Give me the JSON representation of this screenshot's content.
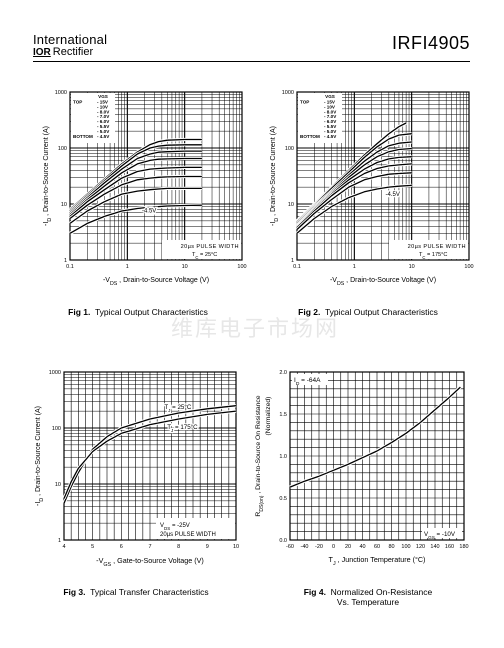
{
  "header": {
    "company_line1": "International",
    "company_logo_mark": "IOR",
    "company_line2": "Rectifier",
    "part_number": "IRFI4905"
  },
  "watermark": "维库电子市场网",
  "chart_data": [
    {
      "id": "fig1",
      "type": "line",
      "caption_num": "Fig 1.",
      "caption": "Typical Output Characteristics",
      "xlabel": "-VDS , Drain-to-Source Voltage (V)",
      "ylabel": "-ID , Drain-to-Source Current (A)",
      "xscale": "log",
      "yscale": "log",
      "xlim": [
        0.1,
        100
      ],
      "ylim": [
        1,
        1000
      ],
      "xticks": [
        "0.1",
        "1",
        "10",
        "100"
      ],
      "yticks": [
        "1",
        "10",
        "100",
        "1000"
      ],
      "legend_header": "VGS",
      "legend_rows": [
        {
          "label": "TOP",
          "value": "- 15V"
        },
        {
          "label": "",
          "value": "- 10V"
        },
        {
          "label": "",
          "value": "- 8.0V"
        },
        {
          "label": "",
          "value": "- 7.0V"
        },
        {
          "label": "",
          "value": "- 6.0V"
        },
        {
          "label": "",
          "value": "- 5.5V"
        },
        {
          "label": "",
          "value": "- 5.0V"
        },
        {
          "label": "BOTTOM",
          "value": "- 4.5V"
        }
      ],
      "curve_label": "-4.5V",
      "curve_label_at": [
        1.8,
        7
      ],
      "note_lines": [
        "20µs PULSE WIDTH",
        "TC = 25°C"
      ],
      "series": [
        {
          "vgs": "-15V",
          "x": [
            0.1,
            0.2,
            0.4,
            0.8,
            1.5,
            2.5,
            3.5,
            5,
            10,
            20
          ],
          "y": [
            8,
            15,
            28,
            52,
            85,
            115,
            130,
            138,
            142,
            142
          ]
        },
        {
          "vgs": "-10V",
          "x": [
            0.1,
            0.2,
            0.4,
            0.8,
            1.5,
            2.5,
            3.5,
            5,
            10,
            20
          ],
          "y": [
            7.5,
            14,
            26,
            48,
            78,
            100,
            108,
            112,
            114,
            114
          ]
        },
        {
          "vgs": "-8.0V",
          "x": [
            0.1,
            0.2,
            0.4,
            0.8,
            1.5,
            2.5,
            3.5,
            5,
            10,
            20
          ],
          "y": [
            7,
            13,
            24,
            42,
            65,
            78,
            84,
            86,
            88,
            88
          ]
        },
        {
          "vgs": "-7.0V",
          "x": [
            0.1,
            0.2,
            0.4,
            0.8,
            1.5,
            2.5,
            3.5,
            5,
            10,
            20
          ],
          "y": [
            6.5,
            12,
            21,
            36,
            52,
            60,
            63,
            64,
            65,
            65
          ]
        },
        {
          "vgs": "-6.0V",
          "x": [
            0.1,
            0.2,
            0.4,
            0.8,
            1.5,
            2.5,
            3.5,
            5,
            10,
            20
          ],
          "y": [
            6,
            11,
            18,
            29,
            38,
            42,
            43,
            44,
            45,
            45
          ]
        },
        {
          "vgs": "-5.5V",
          "x": [
            0.1,
            0.2,
            0.4,
            0.8,
            1.5,
            2.5,
            3.5,
            5,
            10,
            20
          ],
          "y": [
            5.5,
            9.5,
            15,
            22,
            27,
            29,
            30,
            30.5,
            31,
            31
          ]
        },
        {
          "vgs": "-5.0V",
          "x": [
            0.1,
            0.2,
            0.4,
            0.8,
            1.5,
            2.5,
            3.5,
            5,
            10,
            20
          ],
          "y": [
            4.5,
            7.5,
            11,
            15,
            17,
            18,
            18.5,
            19,
            19,
            19
          ]
        },
        {
          "vgs": "-4.5V",
          "x": [
            0.1,
            0.2,
            0.4,
            0.8,
            1.5,
            2.5,
            3.5,
            5,
            10,
            20
          ],
          "y": [
            3,
            4.5,
            6,
            7.5,
            8.3,
            8.8,
            9,
            9.2,
            9.4,
            9.5
          ]
        }
      ]
    },
    {
      "id": "fig2",
      "type": "line",
      "caption_num": "Fig 2.",
      "caption": "Typical Output Characteristics",
      "xlabel": "-VDS , Drain-to-Source Voltage (V)",
      "ylabel": "-ID , Drain-to-Source Current (A)",
      "xscale": "log",
      "yscale": "log",
      "xlim": [
        0.1,
        100
      ],
      "ylim": [
        1,
        1000
      ],
      "xticks": [
        "0.1",
        "1",
        "10",
        "100"
      ],
      "yticks": [
        "1",
        "10",
        "100",
        "1000"
      ],
      "legend_header": "VGS",
      "legend_rows": [
        {
          "label": "TOP",
          "value": "- 15V"
        },
        {
          "label": "",
          "value": "- 10V"
        },
        {
          "label": "",
          "value": "- 8.0V"
        },
        {
          "label": "",
          "value": "- 7.0V"
        },
        {
          "label": "",
          "value": "- 6.0V"
        },
        {
          "label": "",
          "value": "- 5.5V"
        },
        {
          "label": "",
          "value": "- 5.0V"
        },
        {
          "label": "BOTTOM",
          "value": "- 4.5V"
        }
      ],
      "curve_label": "-4.5V",
      "curve_label_at": [
        3.5,
        14
      ],
      "note_lines": [
        "20µs PULSE WIDTH",
        "TC = 175°C"
      ],
      "series": [
        {
          "vgs": "-15V",
          "x": [
            0.1,
            0.2,
            0.4,
            0.8,
            1.5,
            2.5,
            4,
            6,
            8
          ],
          "y": [
            5,
            10,
            20,
            40,
            75,
            120,
            180,
            240,
            280
          ]
        },
        {
          "vgs": "-10V",
          "x": [
            0.1,
            0.2,
            0.4,
            0.8,
            1.5,
            2.5,
            4,
            6,
            10
          ],
          "y": [
            4.8,
            9.5,
            19,
            37,
            68,
            105,
            145,
            170,
            180
          ]
        },
        {
          "vgs": "-8.0V",
          "x": [
            0.1,
            0.2,
            0.4,
            0.8,
            1.5,
            2.5,
            4,
            6,
            10
          ],
          "y": [
            4.5,
            9,
            17,
            33,
            58,
            85,
            110,
            122,
            128
          ]
        },
        {
          "vgs": "-7.0V",
          "x": [
            0.1,
            0.2,
            0.4,
            0.8,
            1.5,
            2.5,
            4,
            6,
            10
          ],
          "y": [
            4.2,
            8.5,
            16,
            30,
            50,
            70,
            86,
            94,
            98
          ]
        },
        {
          "vgs": "-6.0V",
          "x": [
            0.1,
            0.2,
            0.4,
            0.8,
            1.5,
            2.5,
            4,
            6,
            10
          ],
          "y": [
            4,
            8,
            15,
            27,
            42,
            55,
            64,
            68,
            70
          ]
        },
        {
          "vgs": "-5.5V",
          "x": [
            0.1,
            0.2,
            0.4,
            0.8,
            1.5,
            2.5,
            4,
            6,
            10
          ],
          "y": [
            3.8,
            7.5,
            14,
            24,
            35,
            43,
            48,
            50,
            52
          ]
        },
        {
          "vgs": "-5.0V",
          "x": [
            0.1,
            0.2,
            0.4,
            0.8,
            1.5,
            2.5,
            4,
            6,
            10
          ],
          "y": [
            3.5,
            6.8,
            12,
            20,
            27,
            31,
            34,
            35,
            36
          ]
        },
        {
          "vgs": "-4.5V",
          "x": [
            0.1,
            0.2,
            0.4,
            0.8,
            1.5,
            2.5,
            4,
            6,
            10
          ],
          "y": [
            3,
            5.5,
            9,
            13,
            16.5,
            18.5,
            20,
            20.8,
            21.5
          ]
        }
      ]
    },
    {
      "id": "fig3",
      "type": "line",
      "caption_num": "Fig 3.",
      "caption": "Typical Transfer Characteristics",
      "xlabel": "-VGS , Gate-to-Source Voltage (V)",
      "ylabel": "-ID , Drain-to-Source Current (A)",
      "xscale": "linear",
      "yscale": "log",
      "xlim": [
        4,
        10
      ],
      "ylim": [
        1,
        1000
      ],
      "xticks": [
        "4",
        "5",
        "6",
        "7",
        "8",
        "9",
        "10"
      ],
      "yticks": [
        "1",
        "10",
        "100",
        "1000"
      ],
      "note_lines": [
        "VDS = -25V",
        "20µs PULSE WIDTH"
      ],
      "series": [
        {
          "name": "TJ = 25°C",
          "label_at": [
            7.5,
            220
          ],
          "x": [
            4.0,
            4.25,
            4.5,
            5.0,
            5.5,
            6.0,
            7.0,
            8.0,
            9.0,
            10.0
          ],
          "y": [
            4.5,
            9,
            16,
            42,
            70,
            100,
            145,
            185,
            220,
            250
          ]
        },
        {
          "name": "TJ = 175°C",
          "label_at": [
            7.6,
            95
          ],
          "x": [
            4.0,
            4.25,
            4.5,
            5.0,
            5.5,
            6.0,
            7.0,
            8.0,
            9.0,
            10.0
          ],
          "y": [
            5.5,
            11,
            19,
            38,
            58,
            80,
            115,
            145,
            175,
            200
          ]
        }
      ]
    },
    {
      "id": "fig4",
      "type": "line",
      "caption_num": "Fig 4.",
      "caption": "Normalized On-Resistance",
      "caption_line2": "Vs. Temperature",
      "xlabel": "TJ , Junction Temperature (°C)",
      "ylabel_line1": "RDS(on) , Drain-to-Source On Resistance",
      "ylabel_line2": "(Normalized)",
      "xscale": "linear",
      "yscale": "linear",
      "xlim": [
        -60,
        180
      ],
      "ylim": [
        0,
        2.0
      ],
      "xticks": [
        "-60",
        "-40",
        "-20",
        "0",
        "20",
        "40",
        "60",
        "80",
        "100",
        "120",
        "140",
        "160",
        "180"
      ],
      "yticks": [
        "0.0",
        "0.5",
        "1.0",
        "1.5",
        "2.0"
      ],
      "note_top": "ID = -64A",
      "note_bottom": "VGS = -10V",
      "series": [
        {
          "name": "RDS(on)",
          "x": [
            -60,
            -40,
            -20,
            0,
            20,
            40,
            60,
            80,
            100,
            120,
            140,
            160,
            175
          ],
          "y": [
            0.63,
            0.7,
            0.76,
            0.83,
            0.9,
            0.98,
            1.06,
            1.16,
            1.27,
            1.4,
            1.55,
            1.7,
            1.82
          ]
        }
      ]
    }
  ]
}
